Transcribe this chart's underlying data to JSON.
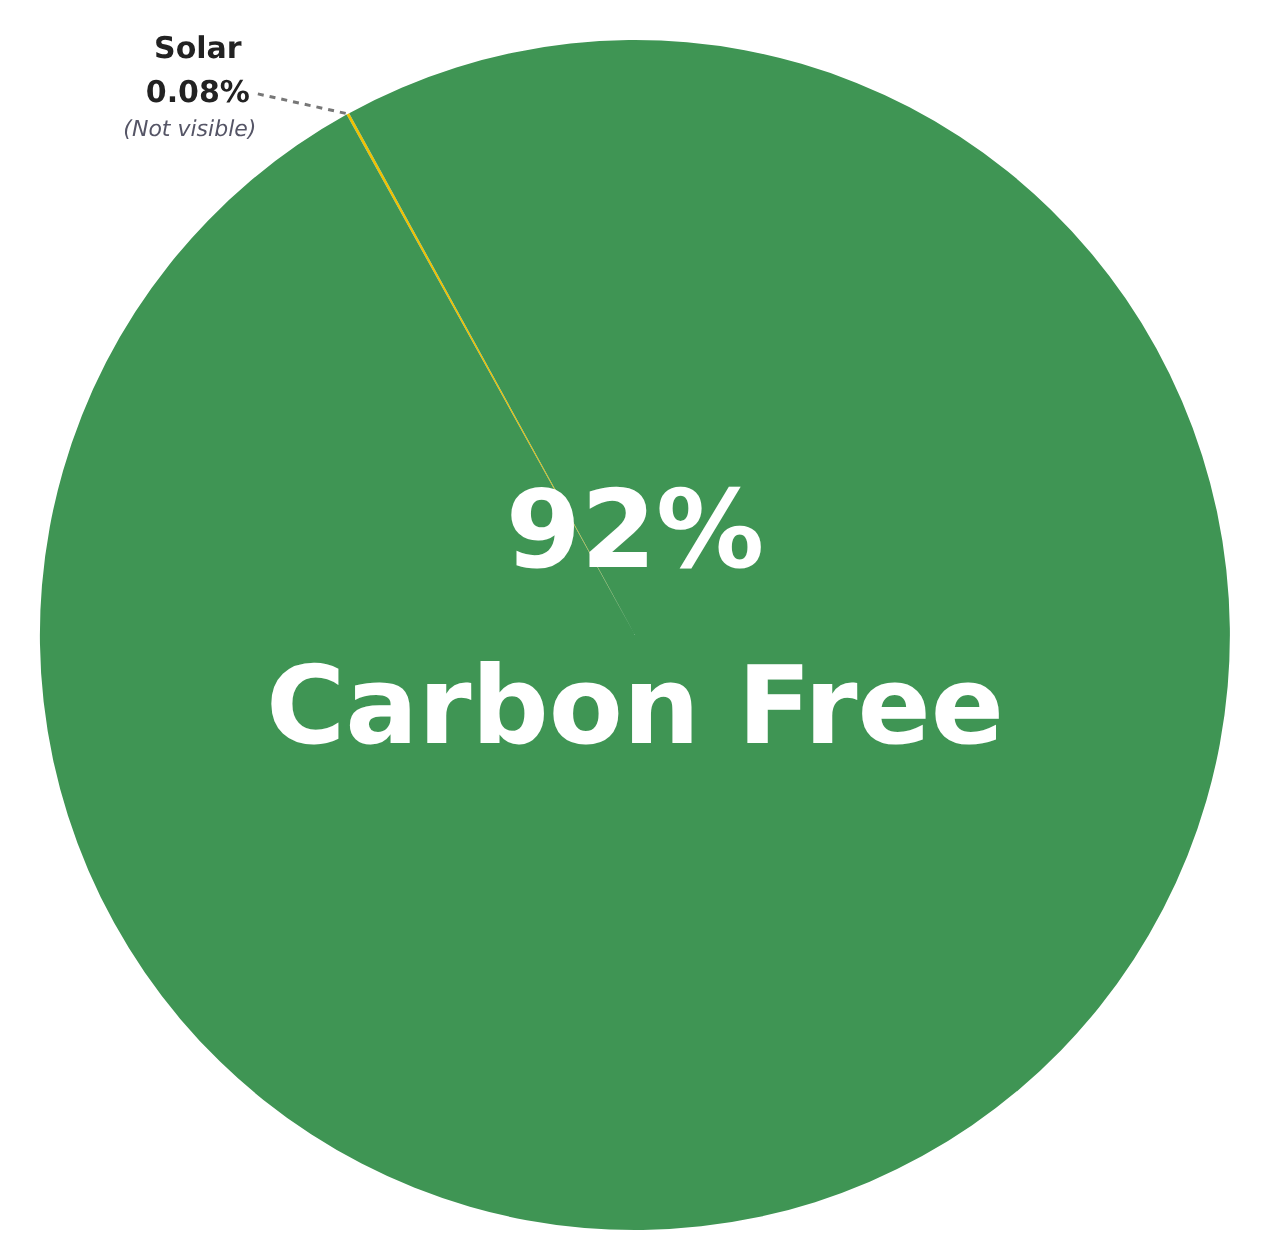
{
  "chart_data": {
    "type": "pie",
    "categories": [
      "Solar",
      null
    ],
    "values": [
      0.08,
      99.92
    ],
    "colors": [
      "#f2c200",
      "#3f9554"
    ],
    "value_labels": [
      "0.08%",
      null
    ],
    "annotations": [
      "(Not visible)",
      "92%",
      "Carbon Free"
    ],
    "legend": false
  }
}
